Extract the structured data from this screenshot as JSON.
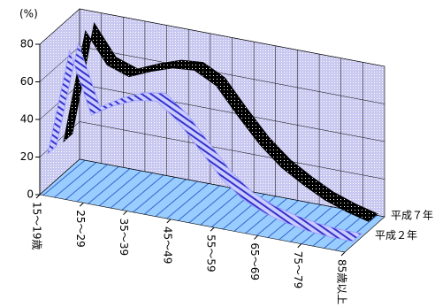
{
  "chart_data": {
    "type": "ribbon3d",
    "y_label": "(%)",
    "categories": [
      "15～19歳",
      null,
      "25～29",
      null,
      "35～39",
      null,
      "45～49",
      null,
      "55～59",
      null,
      "65～69",
      null,
      "75～79",
      null,
      "85歳以上"
    ],
    "series": [
      {
        "name": "平成７年",
        "color": "#000000",
        "values": [
          17,
          78,
          62,
          58,
          63,
          67,
          68,
          62,
          48,
          35,
          25,
          18,
          12,
          8,
          5
        ]
      },
      {
        "name": "平成２年",
        "color": "#9999ff",
        "values": [
          18,
          75,
          43,
          50,
          55,
          57,
          48,
          35,
          22,
          13,
          8,
          5,
          3,
          2,
          2
        ]
      }
    ],
    "ylim": [
      0,
      80
    ],
    "yticks": [
      0,
      20,
      40,
      60,
      80
    ],
    "grid": true
  }
}
